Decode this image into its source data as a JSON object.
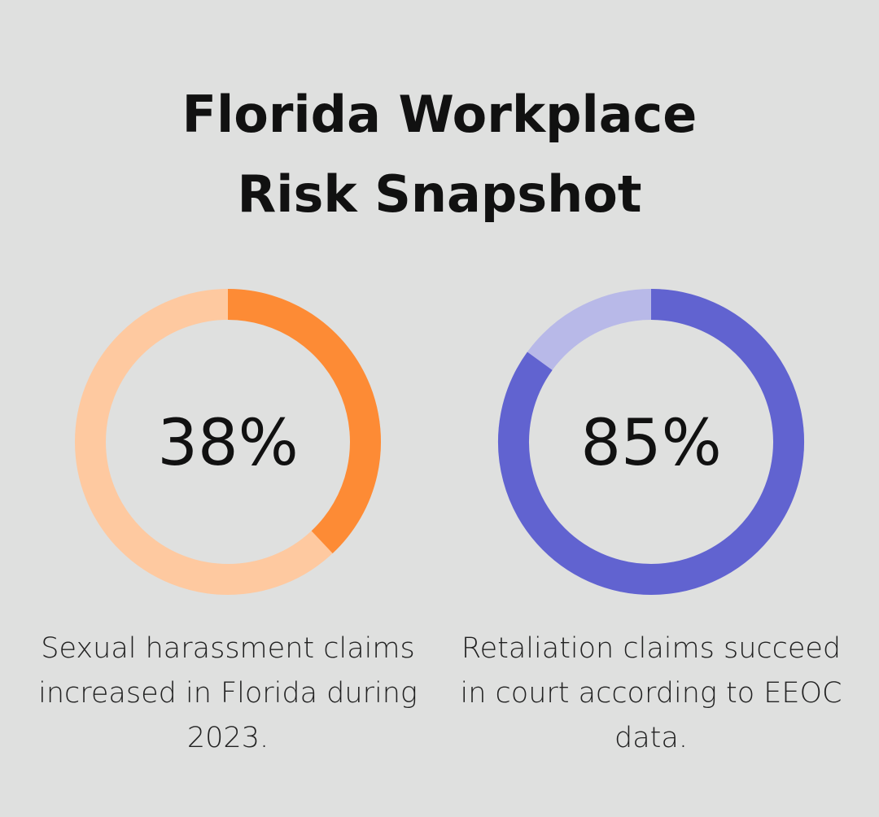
{
  "title": "Florida Workplace Risk Snapshot",
  "chart_data": [
    {
      "type": "donut",
      "values": [
        38
      ],
      "value_labels": [
        "38%"
      ],
      "ylim": [
        0,
        100
      ],
      "color": "#fd8b35",
      "track_color": "#fec9a0",
      "caption": "Sexual harassment claims increased in Florida during 2023."
    },
    {
      "type": "donut",
      "values": [
        85
      ],
      "value_labels": [
        "85%"
      ],
      "ylim": [
        0,
        100
      ],
      "color": "#6163d0",
      "track_color": "#b8b9e8",
      "caption": "Retaliation claims succeed in court according to EEOC data."
    }
  ]
}
